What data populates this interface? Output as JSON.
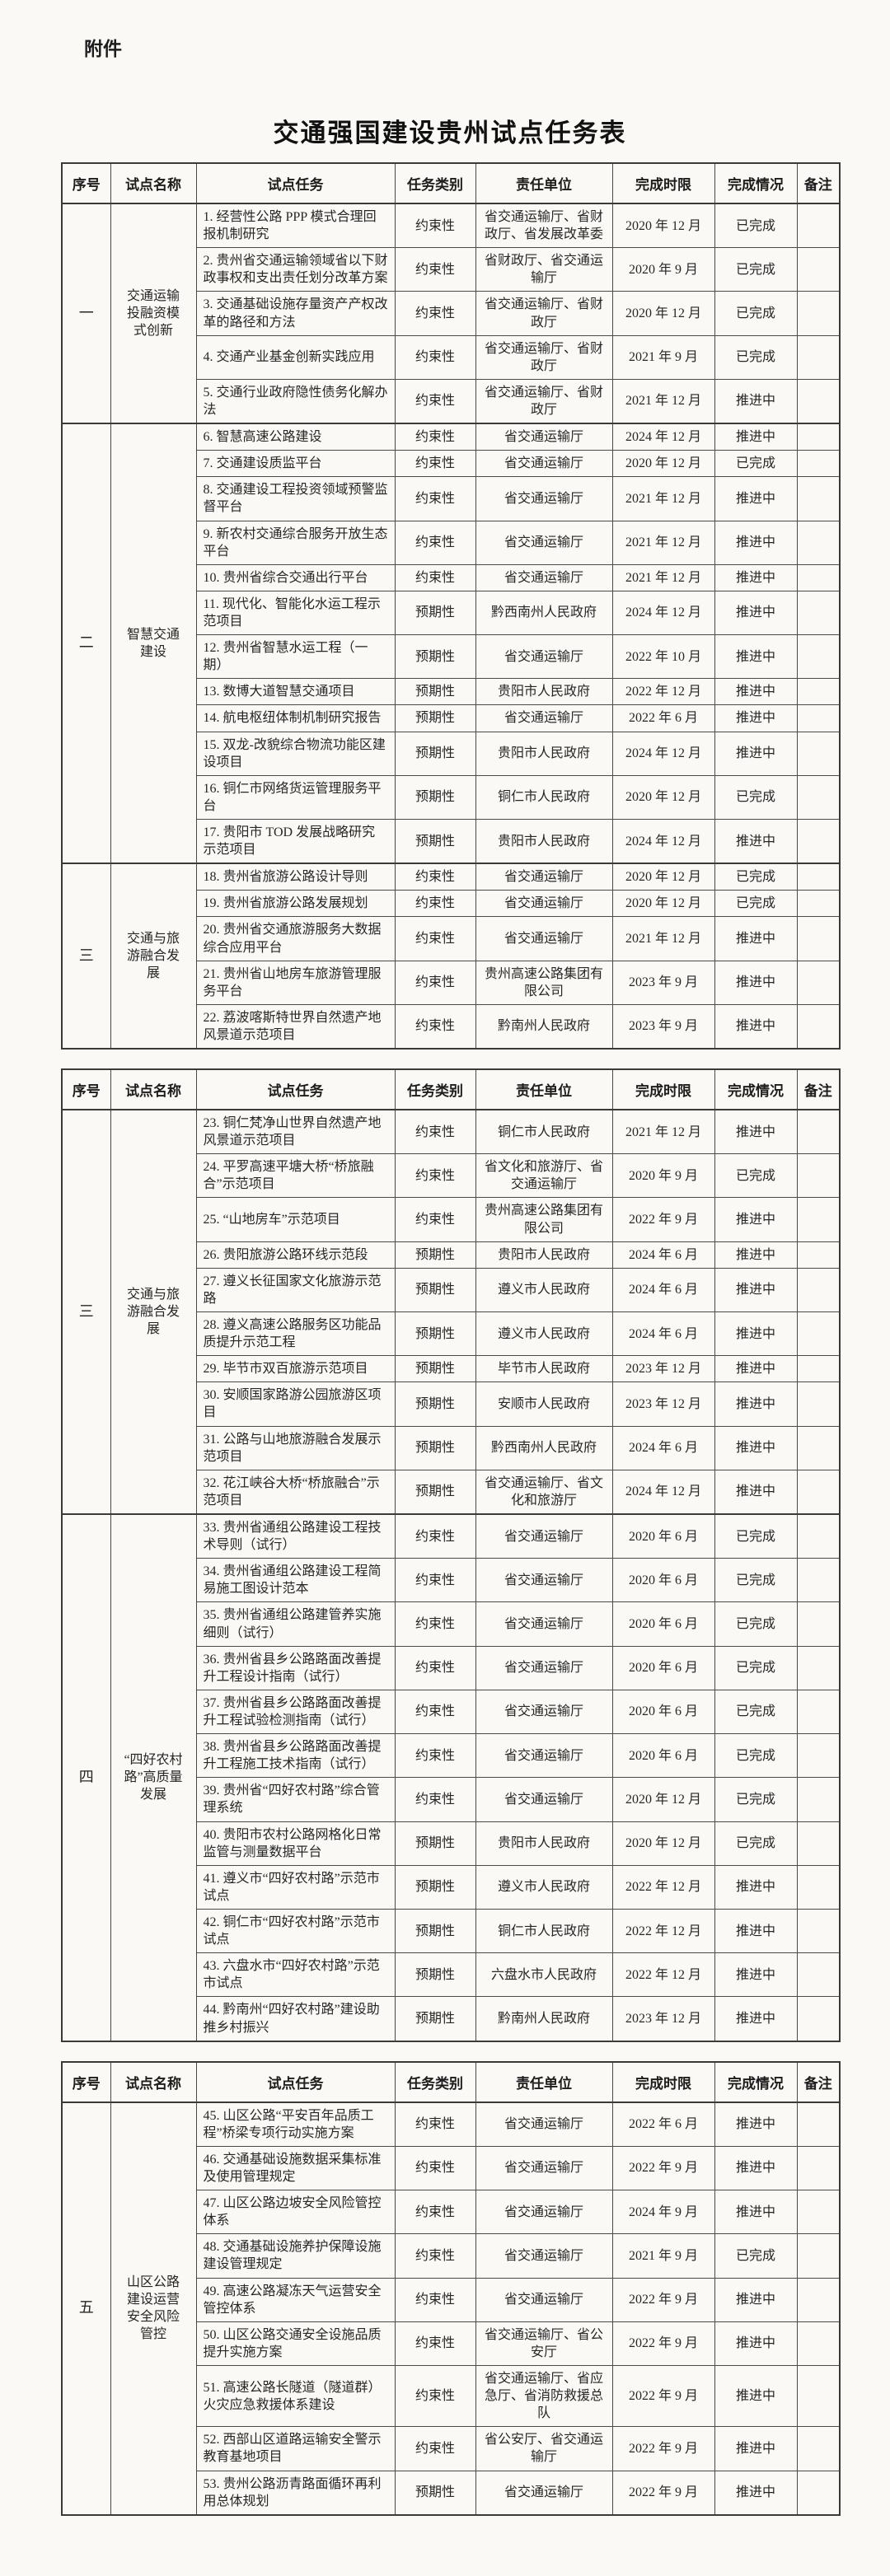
{
  "page": {
    "attachment_label": "附件",
    "title": "交通强国建设贵州试点任务表"
  },
  "columns": [
    "序号",
    "试点名称",
    "试点任务",
    "任务类别",
    "责任单位",
    "完成时限",
    "完成情况",
    "备注"
  ],
  "status_values": [
    "已完成",
    "推进中"
  ],
  "type_values": [
    "约束性",
    "预期性"
  ],
  "tables": [
    {
      "sections": [
        {
          "num": "一",
          "name": "交通运输投融资模式创新",
          "rows": [
            {
              "task": "1. 经营性公路 PPP 模式合理回报机制研究",
              "type": "约束性",
              "unit": "省交通运输厅、省财政厅、省发展改革委",
              "deadline": "2020 年 12 月",
              "status": "已完成",
              "note": ""
            },
            {
              "task": "2. 贵州省交通运输领域省以下财政事权和支出责任划分改革方案",
              "type": "约束性",
              "unit": "省财政厅、省交通运输厅",
              "deadline": "2020 年 9 月",
              "status": "已完成",
              "note": ""
            },
            {
              "task": "3. 交通基础设施存量资产产权改革的路径和方法",
              "type": "约束性",
              "unit": "省交通运输厅、省财政厅",
              "deadline": "2020 年 12 月",
              "status": "已完成",
              "note": ""
            },
            {
              "task": "4. 交通产业基金创新实践应用",
              "type": "约束性",
              "unit": "省交通运输厅、省财政厅",
              "deadline": "2021 年 9 月",
              "status": "已完成",
              "note": ""
            },
            {
              "task": "5. 交通行业政府隐性债务化解办法",
              "type": "约束性",
              "unit": "省交通运输厅、省财政厅",
              "deadline": "2021 年 12 月",
              "status": "推进中",
              "note": ""
            }
          ]
        },
        {
          "num": "二",
          "name": "智慧交通建设",
          "rows": [
            {
              "task": "6. 智慧高速公路建设",
              "type": "约束性",
              "unit": "省交通运输厅",
              "deadline": "2024 年 12 月",
              "status": "推进中",
              "note": ""
            },
            {
              "task": "7. 交通建设质监平台",
              "type": "约束性",
              "unit": "省交通运输厅",
              "deadline": "2020 年 12 月",
              "status": "已完成",
              "note": ""
            },
            {
              "task": "8. 交通建设工程投资领域预警监督平台",
              "type": "约束性",
              "unit": "省交通运输厅",
              "deadline": "2021 年 12 月",
              "status": "推进中",
              "note": ""
            },
            {
              "task": "9. 新农村交通综合服务开放生态平台",
              "type": "约束性",
              "unit": "省交通运输厅",
              "deadline": "2021 年 12 月",
              "status": "推进中",
              "note": ""
            },
            {
              "task": "10. 贵州省综合交通出行平台",
              "type": "约束性",
              "unit": "省交通运输厅",
              "deadline": "2021 年 12 月",
              "status": "推进中",
              "note": ""
            },
            {
              "task": "11. 现代化、智能化水运工程示范项目",
              "type": "预期性",
              "unit": "黔西南州人民政府",
              "deadline": "2024 年 12 月",
              "status": "推进中",
              "note": ""
            },
            {
              "task": "12. 贵州省智慧水运工程（一期）",
              "type": "预期性",
              "unit": "省交通运输厅",
              "deadline": "2022 年 10 月",
              "status": "推进中",
              "note": ""
            },
            {
              "task": "13. 数博大道智慧交通项目",
              "type": "预期性",
              "unit": "贵阳市人民政府",
              "deadline": "2022 年 12 月",
              "status": "推进中",
              "note": ""
            },
            {
              "task": "14. 航电枢纽体制机制研究报告",
              "type": "预期性",
              "unit": "省交通运输厅",
              "deadline": "2022 年 6 月",
              "status": "推进中",
              "note": ""
            },
            {
              "task": "15. 双龙-改貌综合物流功能区建设项目",
              "type": "预期性",
              "unit": "贵阳市人民政府",
              "deadline": "2024 年 12 月",
              "status": "推进中",
              "note": ""
            },
            {
              "task": "16. 铜仁市网络货运管理服务平台",
              "type": "预期性",
              "unit": "铜仁市人民政府",
              "deadline": "2020 年 12 月",
              "status": "已完成",
              "note": ""
            },
            {
              "task": "17. 贵阳市 TOD 发展战略研究示范项目",
              "type": "预期性",
              "unit": "贵阳市人民政府",
              "deadline": "2024 年 12 月",
              "status": "推进中",
              "note": ""
            }
          ]
        },
        {
          "num": "三",
          "name": "交通与旅游融合发展",
          "rows": [
            {
              "task": "18. 贵州省旅游公路设计导则",
              "type": "约束性",
              "unit": "省交通运输厅",
              "deadline": "2020 年 12 月",
              "status": "已完成",
              "note": ""
            },
            {
              "task": "19. 贵州省旅游公路发展规划",
              "type": "约束性",
              "unit": "省交通运输厅",
              "deadline": "2020 年 12 月",
              "status": "已完成",
              "note": ""
            },
            {
              "task": "20. 贵州省交通旅游服务大数据综合应用平台",
              "type": "约束性",
              "unit": "省交通运输厅",
              "deadline": "2021 年 12 月",
              "status": "推进中",
              "note": ""
            },
            {
              "task": "21. 贵州省山地房车旅游管理服务平台",
              "type": "约束性",
              "unit": "贵州高速公路集团有限公司",
              "deadline": "2023 年 9 月",
              "status": "推进中",
              "note": ""
            },
            {
              "task": "22. 荔波喀斯特世界自然遗产地风景道示范项目",
              "type": "约束性",
              "unit": "黔南州人民政府",
              "deadline": "2023 年 9 月",
              "status": "推进中",
              "note": ""
            }
          ]
        }
      ]
    },
    {
      "sections": [
        {
          "num": "三",
          "name": "交通与旅游融合发展",
          "rows": [
            {
              "task": "23. 铜仁梵净山世界自然遗产地风景道示范项目",
              "type": "约束性",
              "unit": "铜仁市人民政府",
              "deadline": "2021 年 12 月",
              "status": "推进中",
              "note": ""
            },
            {
              "task": "24. 平罗高速平塘大桥“桥旅融合”示范项目",
              "type": "约束性",
              "unit": "省文化和旅游厅、省交通运输厅",
              "deadline": "2020 年 9 月",
              "status": "已完成",
              "note": ""
            },
            {
              "task": "25. “山地房车”示范项目",
              "type": "约束性",
              "unit": "贵州高速公路集团有限公司",
              "deadline": "2022 年 9 月",
              "status": "推进中",
              "note": ""
            },
            {
              "task": "26. 贵阳旅游公路环线示范段",
              "type": "预期性",
              "unit": "贵阳市人民政府",
              "deadline": "2024 年 6 月",
              "status": "推进中",
              "note": ""
            },
            {
              "task": "27. 遵义长征国家文化旅游示范路",
              "type": "预期性",
              "unit": "遵义市人民政府",
              "deadline": "2024 年 6 月",
              "status": "推进中",
              "note": ""
            },
            {
              "task": "28. 遵义高速公路服务区功能品质提升示范工程",
              "type": "预期性",
              "unit": "遵义市人民政府",
              "deadline": "2024 年 6 月",
              "status": "推进中",
              "note": ""
            },
            {
              "task": "29. 毕节市双百旅游示范项目",
              "type": "预期性",
              "unit": "毕节市人民政府",
              "deadline": "2023 年 12 月",
              "status": "推进中",
              "note": ""
            },
            {
              "task": "30. 安顺国家路游公园旅游区项目",
              "type": "预期性",
              "unit": "安顺市人民政府",
              "deadline": "2023 年 12 月",
              "status": "推进中",
              "note": ""
            },
            {
              "task": "31. 公路与山地旅游融合发展示范项目",
              "type": "预期性",
              "unit": "黔西南州人民政府",
              "deadline": "2024 年 6 月",
              "status": "推进中",
              "note": ""
            },
            {
              "task": "32. 花江峡谷大桥“桥旅融合”示范项目",
              "type": "预期性",
              "unit": "省交通运输厅、省文化和旅游厅",
              "deadline": "2024 年 12 月",
              "status": "推进中",
              "note": ""
            }
          ]
        },
        {
          "num": "四",
          "name": "“四好农村路”高质量发展",
          "rows": [
            {
              "task": "33. 贵州省通组公路建设工程技术导则（试行）",
              "type": "约束性",
              "unit": "省交通运输厅",
              "deadline": "2020 年 6 月",
              "status": "已完成",
              "note": ""
            },
            {
              "task": "34. 贵州省通组公路建设工程简易施工图设计范本",
              "type": "约束性",
              "unit": "省交通运输厅",
              "deadline": "2020 年 6 月",
              "status": "已完成",
              "note": ""
            },
            {
              "task": "35. 贵州省通组公路建管养实施细则（试行）",
              "type": "约束性",
              "unit": "省交通运输厅",
              "deadline": "2020 年 6 月",
              "status": "已完成",
              "note": ""
            },
            {
              "task": "36. 贵州省县乡公路路面改善提升工程设计指南（试行）",
              "type": "约束性",
              "unit": "省交通运输厅",
              "deadline": "2020 年 6 月",
              "status": "已完成",
              "note": ""
            },
            {
              "task": "37. 贵州省县乡公路路面改善提升工程试验检测指南（试行）",
              "type": "约束性",
              "unit": "省交通运输厅",
              "deadline": "2020 年 6 月",
              "status": "已完成",
              "note": ""
            },
            {
              "task": "38. 贵州省县乡公路路面改善提升工程施工技术指南（试行）",
              "type": "约束性",
              "unit": "省交通运输厅",
              "deadline": "2020 年 6 月",
              "status": "已完成",
              "note": ""
            },
            {
              "task": "39. 贵州省“四好农村路”综合管理系统",
              "type": "约束性",
              "unit": "省交通运输厅",
              "deadline": "2020 年 12 月",
              "status": "已完成",
              "note": ""
            },
            {
              "task": "40. 贵阳市农村公路网格化日常监管与测量数据平台",
              "type": "预期性",
              "unit": "贵阳市人民政府",
              "deadline": "2020 年 12 月",
              "status": "已完成",
              "note": ""
            },
            {
              "task": "41. 遵义市“四好农村路”示范市试点",
              "type": "预期性",
              "unit": "遵义市人民政府",
              "deadline": "2022 年 12 月",
              "status": "推进中",
              "note": ""
            },
            {
              "task": "42. 铜仁市“四好农村路”示范市试点",
              "type": "预期性",
              "unit": "铜仁市人民政府",
              "deadline": "2022 年 12 月",
              "status": "推进中",
              "note": ""
            },
            {
              "task": "43. 六盘水市“四好农村路”示范市试点",
              "type": "预期性",
              "unit": "六盘水市人民政府",
              "deadline": "2022 年 12 月",
              "status": "推进中",
              "note": ""
            },
            {
              "task": "44. 黔南州“四好农村路”建设助推乡村振兴",
              "type": "预期性",
              "unit": "黔南州人民政府",
              "deadline": "2023 年 12 月",
              "status": "推进中",
              "note": ""
            }
          ]
        }
      ]
    },
    {
      "sections": [
        {
          "num": "五",
          "name": "山区公路建设运营安全风险管控",
          "rows": [
            {
              "task": "45. 山区公路“平安百年品质工程”桥梁专项行动实施方案",
              "type": "约束性",
              "unit": "省交通运输厅",
              "deadline": "2022 年 6 月",
              "status": "推进中",
              "note": ""
            },
            {
              "task": "46. 交通基础设施数据采集标准及使用管理规定",
              "type": "约束性",
              "unit": "省交通运输厅",
              "deadline": "2022 年 9 月",
              "status": "推进中",
              "note": ""
            },
            {
              "task": "47. 山区公路边坡安全风险管控体系",
              "type": "约束性",
              "unit": "省交通运输厅",
              "deadline": "2024 年 9 月",
              "status": "推进中",
              "note": ""
            },
            {
              "task": "48. 交通基础设施养护保障设施建设管理规定",
              "type": "约束性",
              "unit": "省交通运输厅",
              "deadline": "2021 年 9 月",
              "status": "已完成",
              "note": ""
            },
            {
              "task": "49. 高速公路凝冻天气运营安全管控体系",
              "type": "约束性",
              "unit": "省交通运输厅",
              "deadline": "2022 年 9 月",
              "status": "推进中",
              "note": ""
            },
            {
              "task": "50. 山区公路交通安全设施品质提升实施方案",
              "type": "约束性",
              "unit": "省交通运输厅、省公安厅",
              "deadline": "2022 年 9 月",
              "status": "推进中",
              "note": ""
            },
            {
              "task": "51. 高速公路长隧道（隧道群）火灾应急救援体系建设",
              "type": "约束性",
              "unit": "省交通运输厅、省应急厅、省消防救援总队",
              "deadline": "2022 年 9 月",
              "status": "推进中",
              "note": ""
            },
            {
              "task": "52. 西部山区道路运输安全警示教育基地项目",
              "type": "约束性",
              "unit": "省公安厅、省交通运输厅",
              "deadline": "2022 年 9 月",
              "status": "推进中",
              "note": ""
            },
            {
              "task": "53. 贵州公路沥青路面循环再利用总体规划",
              "type": "预期性",
              "unit": "省交通运输厅",
              "deadline": "2022 年 9 月",
              "status": "推进中",
              "note": ""
            }
          ]
        }
      ]
    }
  ]
}
